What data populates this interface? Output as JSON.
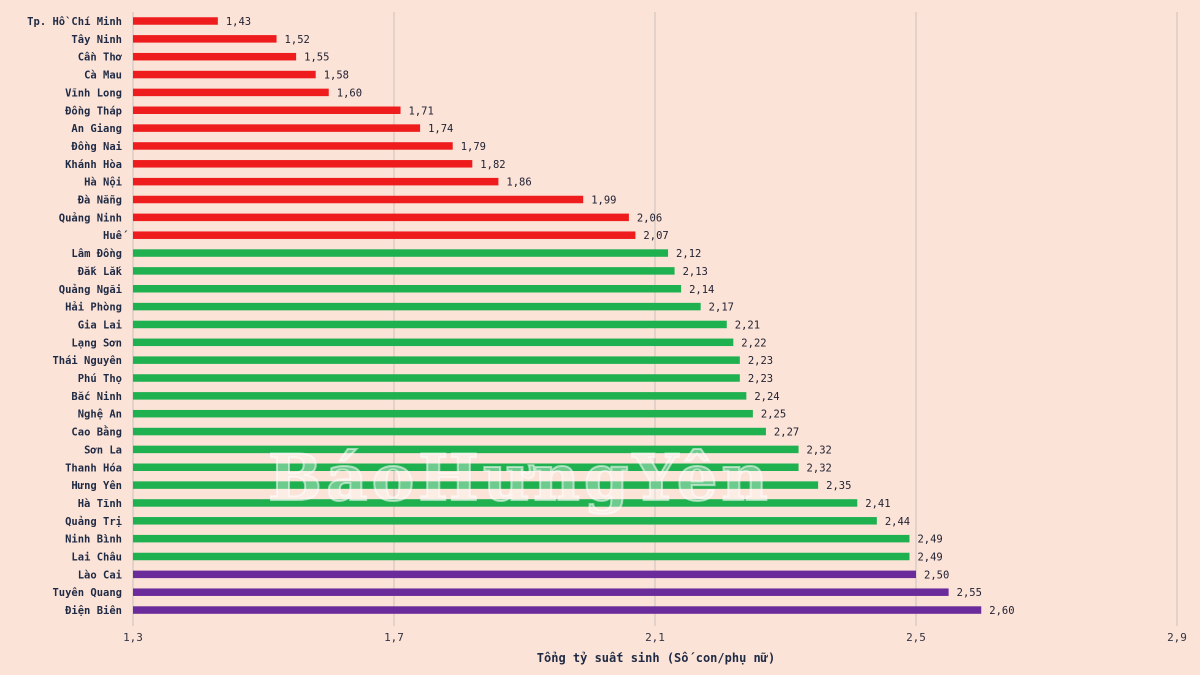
{
  "watermark_text": "BáoHưngYên",
  "colors": {
    "background": "#fbe3d8",
    "below_replacement": "#ee1c1c",
    "above_replacement": "#1fb050",
    "highest": "#6a2c9a"
  },
  "chart_data": {
    "type": "bar",
    "orientation": "horizontal",
    "title": "",
    "xlabel": "Tổng tỷ suất sinh (Số con/phụ nữ)",
    "ylabel": "",
    "xlim": [
      1.3,
      2.9
    ],
    "x_ticks": [
      1.3,
      1.7,
      2.1,
      2.5,
      2.9
    ],
    "x_tick_labels": [
      "1,3",
      "1,7",
      "2,1",
      "2,5",
      "2,9"
    ],
    "grid": "vertical",
    "categories": [
      "Tp. Hồ Chí Minh",
      "Tây Ninh",
      "Cần Thơ",
      "Cà Mau",
      "Vĩnh Long",
      "Đồng Tháp",
      "An Giang",
      "Đồng Nai",
      "Khánh Hòa",
      "Hà Nội",
      "Đà Nẵng",
      "Quảng Ninh",
      "Huế",
      "Lâm Đồng",
      "Đắk Lắk",
      "Quảng Ngãi",
      "Hải Phòng",
      "Gia Lai",
      "Lạng Sơn",
      "Thái Nguyên",
      "Phú Thọ",
      "Bắc Ninh",
      "Nghệ An",
      "Cao Bằng",
      "Sơn La",
      "Thanh Hóa",
      "Hưng Yên",
      "Hà Tĩnh",
      "Quảng Trị",
      "Ninh Bình",
      "Lai Châu",
      "Lào Cai",
      "Tuyên Quang",
      "Điện Biên"
    ],
    "values": [
      1.43,
      1.52,
      1.55,
      1.58,
      1.6,
      1.71,
      1.74,
      1.79,
      1.82,
      1.86,
      1.99,
      2.06,
      2.07,
      2.12,
      2.13,
      2.14,
      2.17,
      2.21,
      2.22,
      2.23,
      2.23,
      2.24,
      2.25,
      2.27,
      2.32,
      2.32,
      2.35,
      2.41,
      2.44,
      2.49,
      2.49,
      2.5,
      2.55,
      2.6
    ],
    "value_labels": [
      "1,43",
      "1,52",
      "1,55",
      "1,58",
      "1,60",
      "1,71",
      "1,74",
      "1,79",
      "1,82",
      "1,86",
      "1,99",
      "2,06",
      "2,07",
      "2,12",
      "2,13",
      "2,14",
      "2,17",
      "2,21",
      "2,22",
      "2,23",
      "2,23",
      "2,24",
      "2,25",
      "2,27",
      "2,32",
      "2,32",
      "2,35",
      "2,41",
      "2,44",
      "2,49",
      "2,49",
      "2,50",
      "2,55",
      "2,60"
    ],
    "bar_colors": [
      "#ee1c1c",
      "#ee1c1c",
      "#ee1c1c",
      "#ee1c1c",
      "#ee1c1c",
      "#ee1c1c",
      "#ee1c1c",
      "#ee1c1c",
      "#ee1c1c",
      "#ee1c1c",
      "#ee1c1c",
      "#ee1c1c",
      "#ee1c1c",
      "#1fb050",
      "#1fb050",
      "#1fb050",
      "#1fb050",
      "#1fb050",
      "#1fb050",
      "#1fb050",
      "#1fb050",
      "#1fb050",
      "#1fb050",
      "#1fb050",
      "#1fb050",
      "#1fb050",
      "#1fb050",
      "#1fb050",
      "#1fb050",
      "#1fb050",
      "#1fb050",
      "#6a2c9a",
      "#6a2c9a",
      "#6a2c9a"
    ]
  }
}
